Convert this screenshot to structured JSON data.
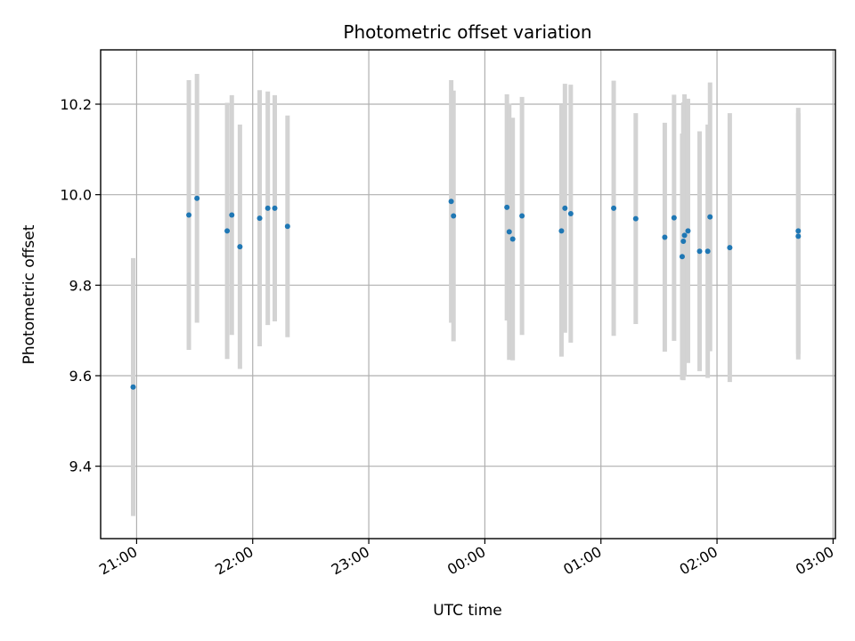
{
  "chart_data": {
    "type": "scatter",
    "title": "Photometric offset variation",
    "xlabel": "UTC time",
    "ylabel": "Photometric offset",
    "x_tick_labels": [
      "21:00",
      "22:00",
      "23:00",
      "00:00",
      "01:00",
      "02:00",
      "03:00"
    ],
    "x_tick_hours": [
      21,
      22,
      23,
      24,
      25,
      26,
      27
    ],
    "xlim_hours": [
      20.69,
      27.02
    ],
    "ylim": [
      9.24,
      10.32
    ],
    "y_ticks": [
      9.4,
      9.6,
      9.8,
      10.0,
      10.2
    ],
    "y_tick_labels": [
      "9.4",
      "9.6",
      "9.8",
      "10.0",
      "10.2"
    ],
    "grid": true,
    "point_color": "#1f77b4",
    "errorbar_color": "#d3d3d3",
    "points": [
      {
        "t": 20.97,
        "y": 9.575,
        "err": 0.285
      },
      {
        "t": 21.45,
        "y": 9.955,
        "err": 0.298
      },
      {
        "t": 21.52,
        "y": 9.992,
        "err": 0.275
      },
      {
        "t": 21.78,
        "y": 9.92,
        "err": 0.283
      },
      {
        "t": 21.82,
        "y": 9.955,
        "err": 0.265
      },
      {
        "t": 21.89,
        "y": 9.885,
        "err": 0.27
      },
      {
        "t": 22.06,
        "y": 9.948,
        "err": 0.283
      },
      {
        "t": 22.13,
        "y": 9.97,
        "err": 0.258
      },
      {
        "t": 22.19,
        "y": 9.97,
        "err": 0.25
      },
      {
        "t": 22.3,
        "y": 9.93,
        "err": 0.245
      },
      {
        "t": 23.71,
        "y": 9.985,
        "err": 0.268
      },
      {
        "t": 23.73,
        "y": 9.953,
        "err": 0.277
      },
      {
        "t": 24.19,
        "y": 9.972,
        "err": 0.25
      },
      {
        "t": 24.21,
        "y": 9.918,
        "err": 0.283
      },
      {
        "t": 24.24,
        "y": 9.902,
        "err": 0.268
      },
      {
        "t": 24.32,
        "y": 9.953,
        "err": 0.263
      },
      {
        "t": 24.66,
        "y": 9.92,
        "err": 0.278
      },
      {
        "t": 24.69,
        "y": 9.97,
        "err": 0.275
      },
      {
        "t": 24.74,
        "y": 9.958,
        "err": 0.285
      },
      {
        "t": 25.11,
        "y": 9.97,
        "err": 0.282
      },
      {
        "t": 25.3,
        "y": 9.947,
        "err": 0.233
      },
      {
        "t": 25.55,
        "y": 9.906,
        "err": 0.253
      },
      {
        "t": 25.63,
        "y": 9.949,
        "err": 0.272
      },
      {
        "t": 25.7,
        "y": 9.863,
        "err": 0.272
      },
      {
        "t": 25.71,
        "y": 9.897,
        "err": 0.307
      },
      {
        "t": 25.72,
        "y": 9.91,
        "err": 0.312
      },
      {
        "t": 25.75,
        "y": 9.92,
        "err": 0.292
      },
      {
        "t": 25.85,
        "y": 9.875,
        "err": 0.265
      },
      {
        "t": 25.92,
        "y": 9.875,
        "err": 0.28
      },
      {
        "t": 25.94,
        "y": 9.951,
        "err": 0.297
      },
      {
        "t": 26.11,
        "y": 9.883,
        "err": 0.297
      },
      {
        "t": 26.7,
        "y": 9.908,
        "err": 0.272
      },
      {
        "t": 26.7,
        "y": 9.92,
        "err": 0.272
      }
    ]
  }
}
